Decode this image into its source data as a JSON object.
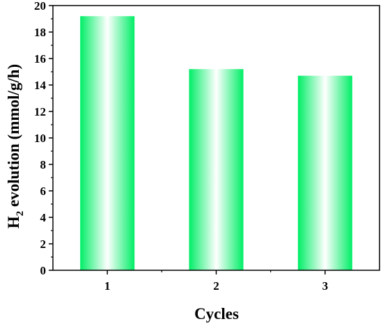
{
  "chart_data": {
    "type": "bar",
    "categories": [
      "1",
      "2",
      "3"
    ],
    "values": [
      19.2,
      15.2,
      14.7
    ],
    "xlabel": "Cycles",
    "ylabel": {
      "prefix": "H",
      "subscript": "2",
      "suffix": " evolution (mmol/g/h)"
    },
    "ylim": [
      0,
      20
    ],
    "yticks": [
      0,
      2,
      4,
      6,
      8,
      10,
      12,
      14,
      16,
      18,
      20
    ],
    "grid": false,
    "bar_gradient": {
      "edge": "#00ee66",
      "center": "#ffffff"
    }
  }
}
